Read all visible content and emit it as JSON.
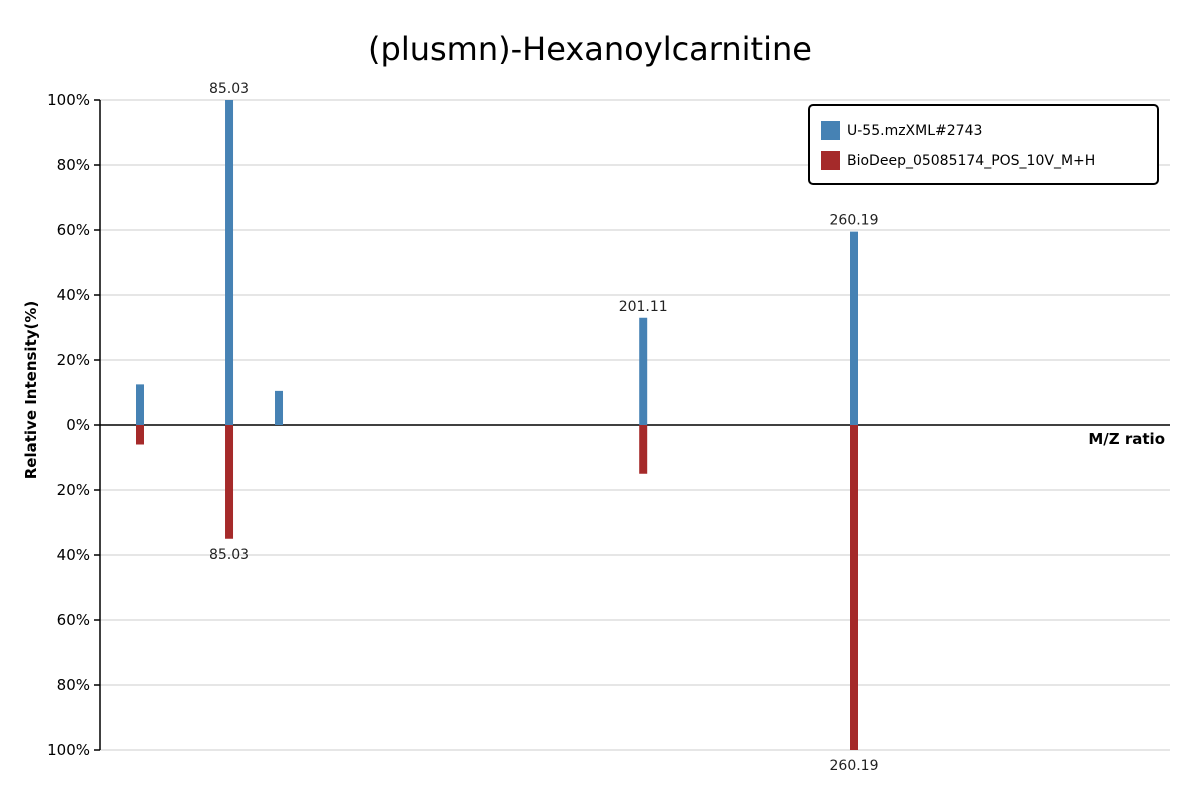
{
  "chart_data": {
    "type": "bar",
    "title": "(plusmn)-Hexanoylcarnitine",
    "xlabel": "M/Z ratio",
    "ylabel": "Relative Intensity(%)",
    "ylim": [
      -100,
      100
    ],
    "y_ticks": [
      "100%",
      "80%",
      "60%",
      "40%",
      "20%",
      "0%",
      "20%",
      "40%",
      "60%",
      "80%",
      "100%"
    ],
    "grid": true,
    "legend_position": "top-right",
    "series": [
      {
        "name": "U-55.mzXML#2743",
        "color": "#4682b4",
        "direction": "up",
        "peaks": [
          {
            "mz": 60.08,
            "intensity": 12.5,
            "label": ""
          },
          {
            "mz": 85.03,
            "intensity": 100,
            "label": "85.03"
          },
          {
            "mz": 99.04,
            "intensity": 10.5,
            "label": ""
          },
          {
            "mz": 201.11,
            "intensity": 33,
            "label": "201.11"
          },
          {
            "mz": 260.19,
            "intensity": 59.5,
            "label": "260.19"
          }
        ]
      },
      {
        "name": "BioDeep_05085174_POS_10V_M+H",
        "color": "#a52a2a",
        "direction": "down",
        "peaks": [
          {
            "mz": 60.08,
            "intensity": 6,
            "label": ""
          },
          {
            "mz": 85.03,
            "intensity": 35,
            "label": "85.03"
          },
          {
            "mz": 201.11,
            "intensity": 15,
            "label": ""
          },
          {
            "mz": 260.19,
            "intensity": 100,
            "label": "260.19"
          }
        ]
      }
    ]
  }
}
